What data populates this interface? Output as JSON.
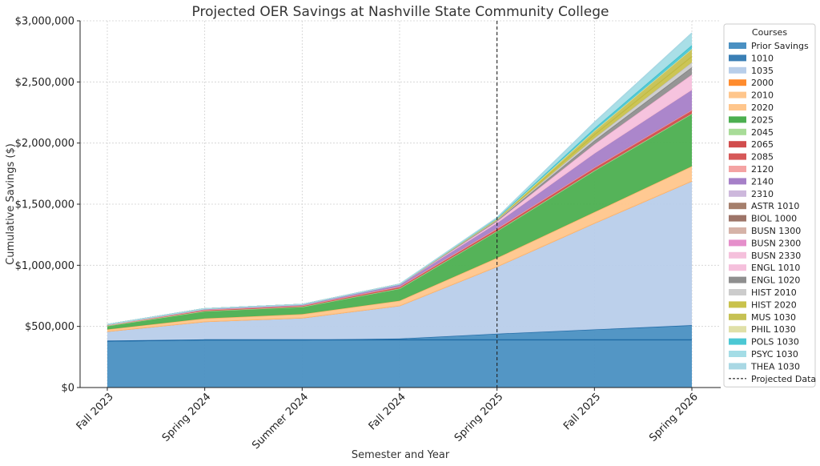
{
  "chart_data": {
    "type": "area",
    "stacked": true,
    "title": "Projected OER Savings at Nashville State Community College",
    "xlabel": "Semester and Year",
    "ylabel": "Cumulative Savings ($)",
    "ylim": [
      0,
      3000000
    ],
    "yticks": [
      0,
      500000,
      1000000,
      1500000,
      2000000,
      2500000,
      3000000
    ],
    "ytick_labels": [
      "$0",
      "$500,000",
      "$1,000,000",
      "$1,500,000",
      "$2,000,000",
      "$2,500,000",
      "$3,000,000"
    ],
    "categories": [
      "Fall 2023",
      "Spring 2024",
      "Summer 2024",
      "Fall 2024",
      "Spring 2025",
      "Fall 2025",
      "Spring 2026"
    ],
    "grid": true,
    "legend_title": "Courses",
    "legend_position": "right",
    "projection_marker": {
      "label": "Projected Data",
      "at": "Spring 2025"
    },
    "series": [
      {
        "name": "Prior Savings",
        "color": "#4A90C2",
        "values": [
          380000,
          390000,
          390000,
          400000,
          440000,
          475000,
          510000
        ],
        "line": "#3A7FB5"
      },
      {
        "name": "1010",
        "color": "#3A7FB5",
        "values": [
          0,
          0,
          0,
          0,
          0,
          0,
          0
        ],
        "line": "#1F6AA5"
      },
      {
        "name": "1035",
        "color": "#B8CEEA",
        "values": [
          80000,
          150000,
          180000,
          270000,
          550000,
          870000,
          1180000
        ],
        "line": "#A9C4E6"
      },
      {
        "name": "2000",
        "color": "#FF8C2E",
        "values": [
          0,
          0,
          0,
          0,
          0,
          0,
          0
        ],
        "line": "#FF8C2E"
      },
      {
        "name": "2010",
        "color": "#FFC68C",
        "values": [
          0,
          0,
          0,
          0,
          0,
          0,
          0
        ],
        "line": "#FFB56B"
      },
      {
        "name": "2020",
        "color": "#FFC68C",
        "values": [
          15000,
          25000,
          30000,
          40000,
          70000,
          90000,
          120000
        ],
        "line": "#FFB56B"
      },
      {
        "name": "2025",
        "color": "#4CAF50",
        "values": [
          30000,
          60000,
          60000,
          100000,
          220000,
          340000,
          430000
        ],
        "line": "#3E9B42"
      },
      {
        "name": "2045",
        "color": "#A8DC98",
        "values": [
          0,
          0,
          0,
          0,
          0,
          0,
          0
        ],
        "line": "#A8DC98"
      },
      {
        "name": "2065",
        "color": "#D14D4D",
        "values": [
          5000,
          10000,
          10000,
          15000,
          20000,
          25000,
          30000
        ],
        "line": "#C33C3C"
      },
      {
        "name": "2085",
        "color": "#D65858",
        "values": [
          0,
          0,
          0,
          0,
          0,
          0,
          0
        ],
        "line": "#D65858"
      },
      {
        "name": "2120",
        "color": "#F4A3A3",
        "values": [
          0,
          0,
          0,
          0,
          0,
          0,
          0
        ],
        "line": "#F4A3A3"
      },
      {
        "name": "2140",
        "color": "#A680C8",
        "values": [
          5000,
          10000,
          10000,
          20000,
          50000,
          120000,
          170000
        ],
        "line": "#9A72BE"
      },
      {
        "name": "2310",
        "color": "#CDB8DC",
        "values": [
          0,
          0,
          0,
          0,
          0,
          0,
          0
        ],
        "line": "#CDB8DC"
      },
      {
        "name": "ASTR 1010",
        "color": "#A57F6C",
        "values": [
          0,
          0,
          0,
          0,
          0,
          0,
          0
        ],
        "line": "#A57F6C"
      },
      {
        "name": "BIOL 1000",
        "color": "#9D7468",
        "values": [
          0,
          0,
          0,
          0,
          0,
          0,
          0
        ],
        "line": "#9D7468"
      },
      {
        "name": "BUSN 1300",
        "color": "#D6B3A8",
        "values": [
          0,
          0,
          0,
          0,
          0,
          0,
          0
        ],
        "line": "#D6B3A8"
      },
      {
        "name": "BUSN 2300",
        "color": "#E58FCB",
        "values": [
          0,
          0,
          0,
          0,
          0,
          0,
          0
        ],
        "line": "#E58FCB"
      },
      {
        "name": "BUSN 2330",
        "color": "#F5C0DC",
        "values": [
          0,
          0,
          0,
          0,
          0,
          0,
          0
        ],
        "line": "#F5C0DC"
      },
      {
        "name": "ENGL 1010",
        "color": "#F5C0DC",
        "values": [
          0,
          0,
          0,
          0,
          10000,
          70000,
          120000
        ],
        "line": "#F0B0D0"
      },
      {
        "name": "ENGL 1020",
        "color": "#8F8F8F",
        "values": [
          0,
          0,
          0,
          0,
          5000,
          30000,
          60000
        ],
        "line": "#7F7F7F"
      },
      {
        "name": "HIST 2010",
        "color": "#CCCCCC",
        "values": [
          0,
          0,
          0,
          0,
          5000,
          20000,
          40000
        ],
        "line": "#C0C0C0"
      },
      {
        "name": "HIST 2020",
        "color": "#C9C24C",
        "values": [
          0,
          0,
          0,
          0,
          5000,
          30000,
          50000
        ],
        "line": "#BDB63C"
      },
      {
        "name": "MUS 1030",
        "color": "#C6C153",
        "values": [
          0,
          0,
          0,
          0,
          5000,
          30000,
          60000
        ],
        "line": "#B9B345"
      },
      {
        "name": "PHIL 1030",
        "color": "#E0E0A8",
        "values": [
          0,
          0,
          0,
          0,
          0,
          0,
          0
        ],
        "line": "#E0E0A8"
      },
      {
        "name": "POLS 1030",
        "color": "#4CC8D4",
        "values": [
          0,
          0,
          0,
          0,
          5000,
          20000,
          30000
        ],
        "line": "#35BDCB"
      },
      {
        "name": "PSYC 1030",
        "color": "#A4DDE6",
        "values": [
          0,
          0,
          0,
          0,
          5000,
          50000,
          100000
        ],
        "line": "#95D6E0"
      },
      {
        "name": "THEA 1030",
        "color": "#A9D8E4",
        "values": [
          0,
          0,
          0,
          0,
          0,
          0,
          0
        ],
        "line": "#A9D8E4"
      }
    ]
  }
}
